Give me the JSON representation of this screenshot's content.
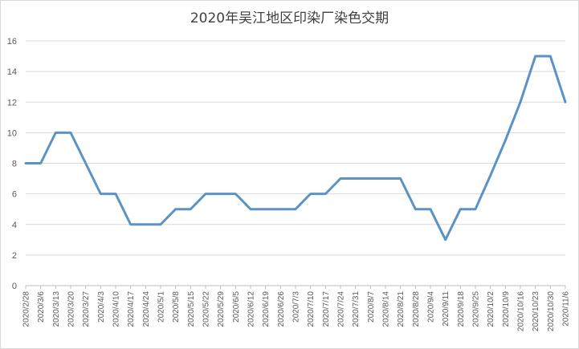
{
  "chart_data": {
    "type": "line",
    "title": "2020年吴江地区印染厂染色交期",
    "xlabel": "",
    "ylabel": "",
    "ylim": [
      0,
      16
    ],
    "y_ticks": [
      "0",
      "2",
      "4",
      "6",
      "8",
      "10",
      "12",
      "14",
      "16"
    ],
    "grid": "horizontal",
    "legend": "none",
    "line_color": "#5b93c4",
    "x": [
      "2020/2/28",
      "2020/3/6",
      "2020/3/13",
      "2020/3/20",
      "2020/3/27",
      "2020/4/3",
      "2020/4/10",
      "2020/4/17",
      "2020/4/24",
      "2020/5/1",
      "2020/5/8",
      "2020/5/15",
      "2020/5/22",
      "2020/5/29",
      "2020/6/5",
      "2020/6/12",
      "2020/6/19",
      "2020/6/26",
      "2020/7/3",
      "2020/7/10",
      "2020/7/17",
      "2020/7/24",
      "2020/7/31",
      "2020/8/7",
      "2020/8/14",
      "2020/8/21",
      "2020/8/28",
      "2020/9/4",
      "2020/9/11",
      "2020/9/18",
      "2020/9/25",
      "2020/10/2",
      "2020/10/9",
      "2020/10/16",
      "2020/10/23",
      "2020/10/30",
      "2020/11/6"
    ],
    "series": [
      {
        "values": [
          8,
          8,
          10,
          10,
          8,
          6,
          6,
          4,
          4,
          4,
          5,
          5,
          6,
          6,
          6,
          5,
          5,
          5,
          5,
          6,
          6,
          7,
          7,
          7,
          7,
          7,
          5,
          5,
          3,
          5,
          5,
          7.2,
          9.5,
          12,
          15,
          15,
          12
        ]
      }
    ]
  }
}
